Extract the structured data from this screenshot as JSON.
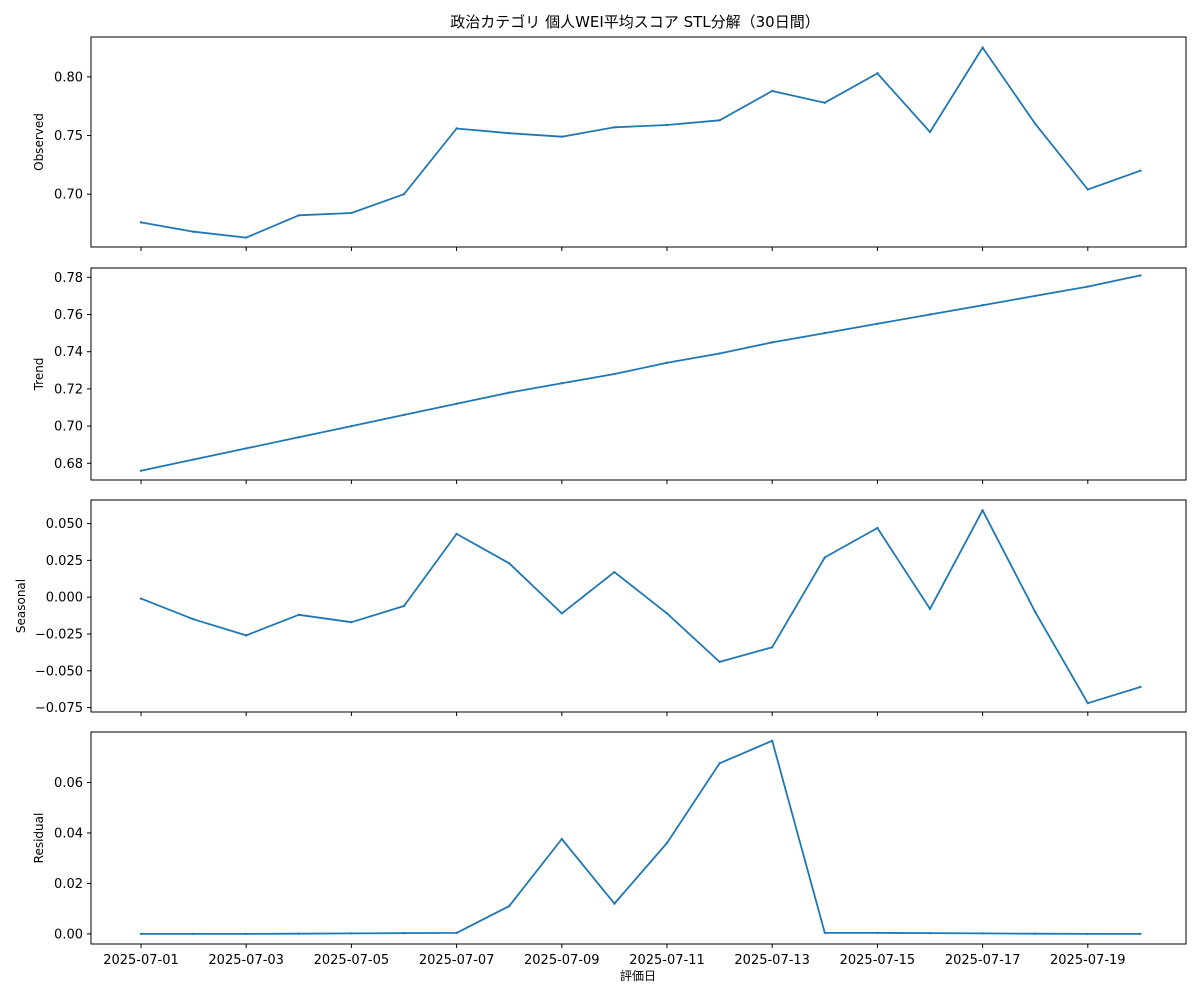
{
  "chart_data": {
    "type": "line",
    "title": "政治カテゴリ 個人WEI平均スコア STL分解（30日間）",
    "xlabel": "評価日",
    "line_color": "#1f77b4",
    "x": [
      "2025-07-01",
      "2025-07-02",
      "2025-07-03",
      "2025-07-04",
      "2025-07-05",
      "2025-07-06",
      "2025-07-07",
      "2025-07-08",
      "2025-07-09",
      "2025-07-10",
      "2025-07-11",
      "2025-07-12",
      "2025-07-13",
      "2025-07-14",
      "2025-07-15",
      "2025-07-16",
      "2025-07-17",
      "2025-07-18",
      "2025-07-19",
      "2025-07-20"
    ],
    "x_tick_labels": [
      "2025-07-01",
      "2025-07-03",
      "2025-07-05",
      "2025-07-07",
      "2025-07-09",
      "2025-07-11",
      "2025-07-13",
      "2025-07-15",
      "2025-07-17",
      "2025-07-19"
    ],
    "panels": [
      {
        "ylabel": "Observed",
        "ylim": [
          0.655,
          0.834
        ],
        "yticks": [
          0.7,
          0.75,
          0.8
        ],
        "ytick_labels": [
          "0.70",
          "0.75",
          "0.80"
        ],
        "values": [
          0.676,
          0.668,
          0.663,
          0.682,
          0.684,
          0.7,
          0.756,
          0.752,
          0.749,
          0.757,
          0.759,
          0.763,
          0.788,
          0.778,
          0.803,
          0.753,
          0.825,
          0.76,
          0.704,
          0.72
        ]
      },
      {
        "ylabel": "Trend",
        "ylim": [
          0.671,
          0.785
        ],
        "yticks": [
          0.68,
          0.7,
          0.72,
          0.74,
          0.76,
          0.78
        ],
        "ytick_labels": [
          "0.68",
          "0.70",
          "0.72",
          "0.74",
          "0.76",
          "0.78"
        ],
        "values": [
          0.676,
          0.682,
          0.688,
          0.694,
          0.7,
          0.706,
          0.712,
          0.718,
          0.723,
          0.728,
          0.734,
          0.739,
          0.745,
          0.75,
          0.755,
          0.76,
          0.765,
          0.77,
          0.775,
          0.781
        ]
      },
      {
        "ylabel": "Seasonal",
        "ylim": [
          -0.078,
          0.066
        ],
        "yticks": [
          -0.075,
          -0.05,
          -0.025,
          0.0,
          0.025,
          0.05
        ],
        "ytick_labels": [
          "−0.075",
          "−0.050",
          "−0.025",
          "0.000",
          "0.025",
          "0.050"
        ],
        "values": [
          -0.001,
          -0.015,
          -0.026,
          -0.012,
          -0.017,
          -0.006,
          0.043,
          0.023,
          -0.011,
          0.017,
          -0.011,
          -0.044,
          -0.034,
          0.027,
          0.047,
          -0.008,
          0.059,
          -0.01,
          -0.072,
          -0.061
        ]
      },
      {
        "ylabel": "Residual",
        "ylim": [
          -0.004,
          0.08
        ],
        "yticks": [
          0.0,
          0.02,
          0.04,
          0.06
        ],
        "ytick_labels": [
          "0.00",
          "0.02",
          "0.04",
          "0.06"
        ],
        "values": [
          0.0,
          0.0,
          0.0,
          0.0001,
          0.0002,
          0.0003,
          0.0004,
          0.011,
          0.0376,
          0.012,
          0.036,
          0.0676,
          0.0765,
          0.0004,
          0.0004,
          0.0003,
          0.0002,
          0.0001,
          0.0,
          0.0
        ]
      }
    ]
  }
}
